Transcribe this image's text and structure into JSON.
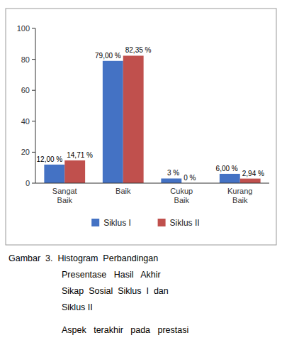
{
  "chart_data": {
    "type": "bar",
    "categories": [
      "Sangat\nBaik",
      "Baik",
      "Cukup\nBaik",
      "Kurang\nBaik"
    ],
    "series": [
      {
        "name": "Siklus I",
        "color": "#4472C4",
        "values": [
          12.0,
          79.0,
          3.0,
          6.0
        ],
        "value_labels": [
          "12,00 %",
          "79,00 %",
          "3 %",
          "6,00 %"
        ]
      },
      {
        "name": "Siklus II",
        "color": "#C0504D",
        "values": [
          14.71,
          82.35,
          0.0,
          2.94
        ],
        "value_labels": [
          "14,71 %",
          "82,35 %",
          "0 %",
          "2,94 %"
        ]
      }
    ],
    "ylim": [
      0,
      100
    ],
    "yticks": [
      0,
      20,
      40,
      60,
      80,
      100
    ],
    "grid": false,
    "legend": "bottom",
    "data_labels": true,
    "annotations": [
      "Gambar  3.  Histogram  Perbandingan",
      "Presentase   Hasil   Akhir",
      "Sikap  Sosial  Siklus  I  dan",
      "Siklus II",
      "Aspek   terakhir   pada   prestasi"
    ]
  }
}
